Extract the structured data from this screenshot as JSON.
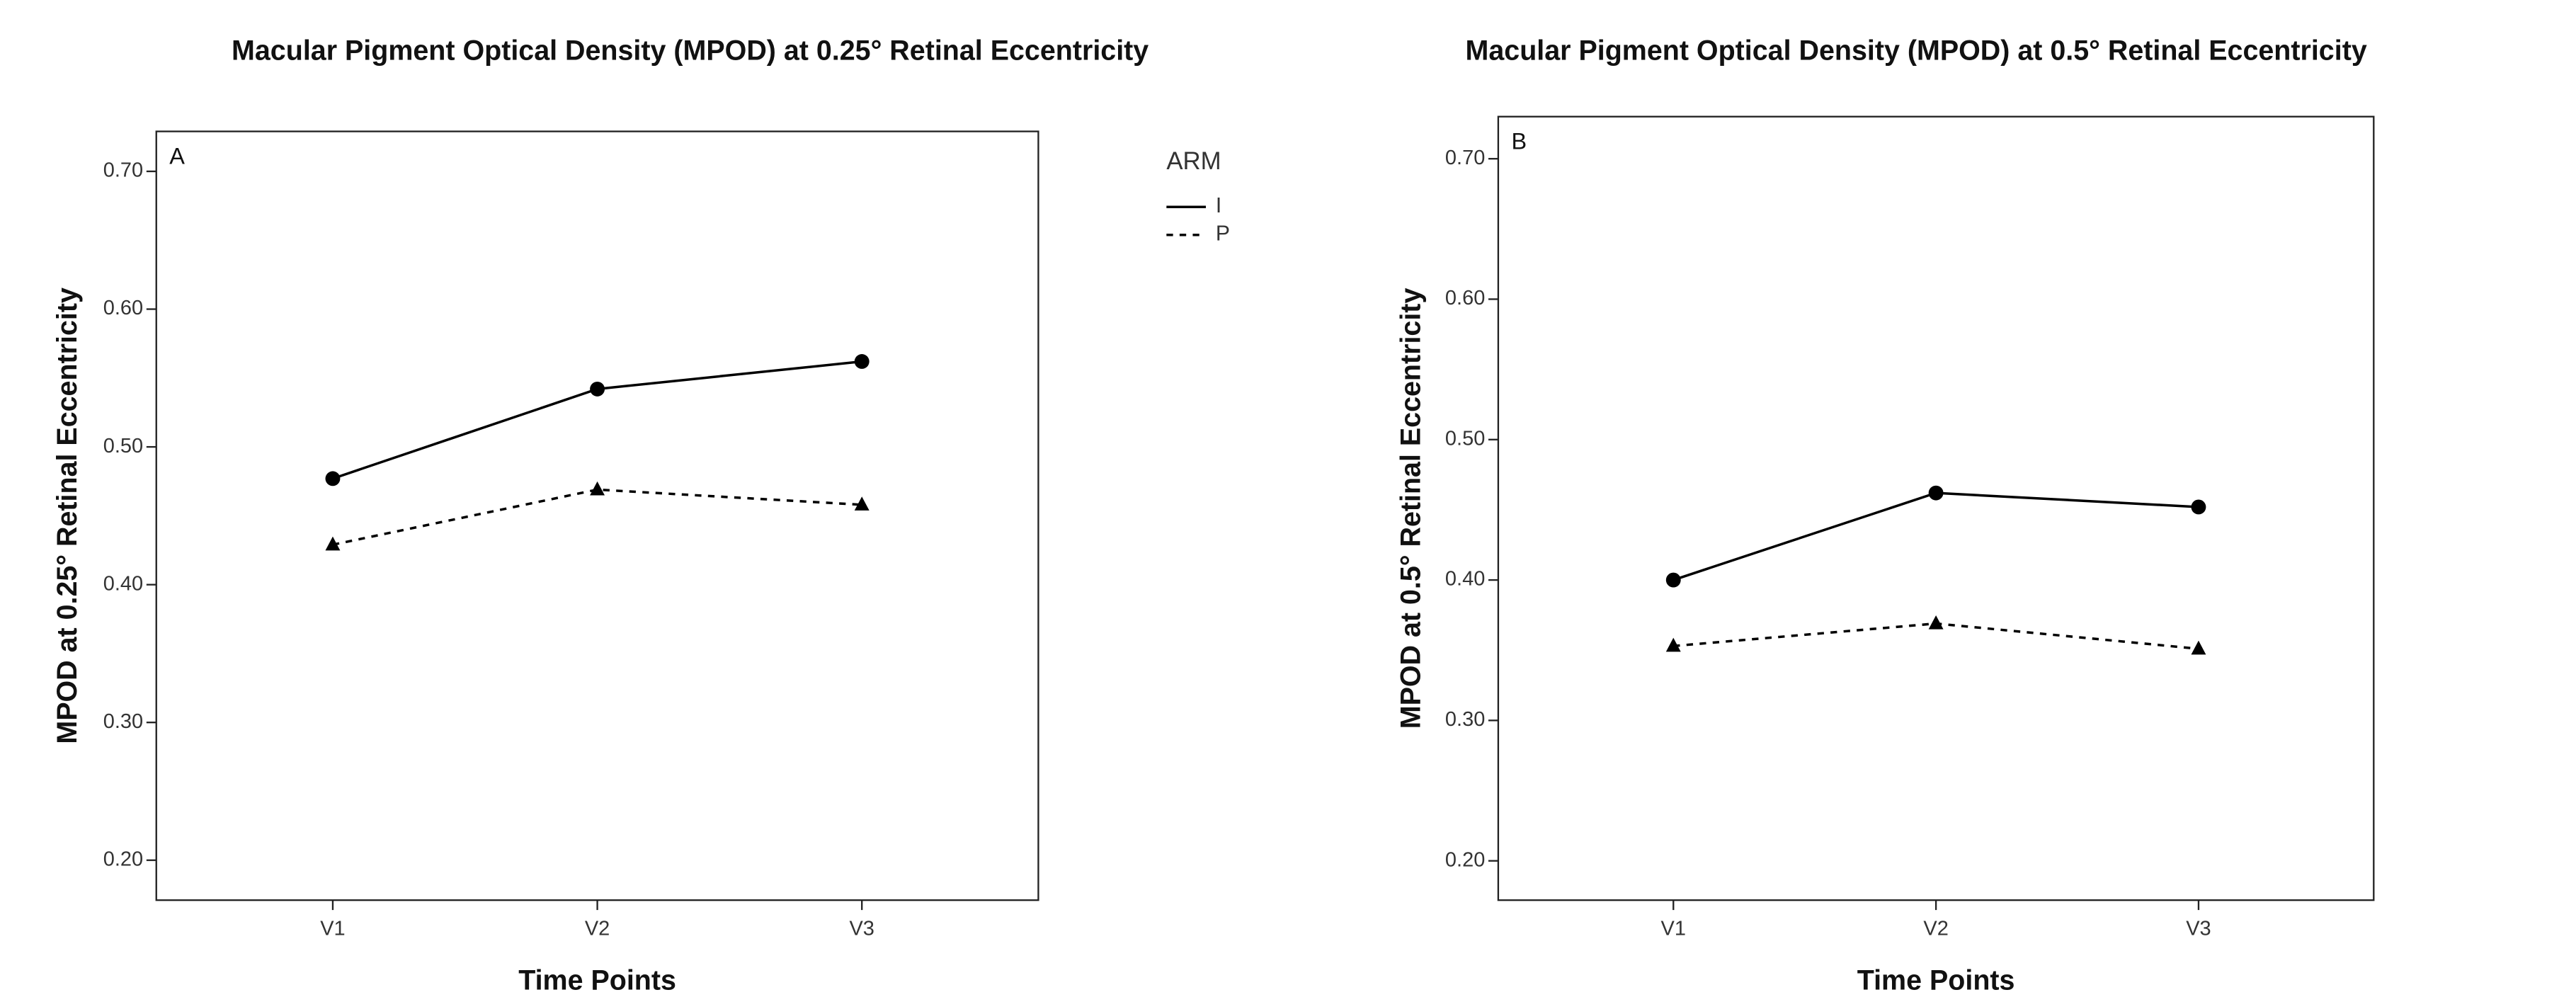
{
  "chart_data": [
    {
      "type": "line",
      "panel_label": "A",
      "title": "Macular Pigment Optical Density (MPOD) at 0.25° Retinal Eccentricity",
      "x_label": "Time Points",
      "y_label": "MPOD at 0.25° Retinal Eccentricity",
      "categories": [
        "V1",
        "V2",
        "V3"
      ],
      "series": [
        {
          "name": "I",
          "color": "#000000",
          "marker": "circle",
          "line_style": "solid",
          "values": [
            0.477,
            0.542,
            0.562
          ]
        },
        {
          "name": "P",
          "color": "#000000",
          "marker": "triangle",
          "line_style": "dashed",
          "values": [
            0.429,
            0.469,
            0.458
          ]
        }
      ],
      "ylim": [
        0.171,
        0.729
      ],
      "yticks": [
        {
          "value": 0.2,
          "label": "0.20"
        },
        {
          "value": 0.3,
          "label": "0.30"
        },
        {
          "value": 0.4,
          "label": "0.40"
        },
        {
          "value": 0.5,
          "label": "0.50"
        },
        {
          "value": 0.6,
          "label": "0.60"
        },
        {
          "value": 0.7,
          "label": "0.70"
        }
      ],
      "legend": true,
      "legend_title": "ARM"
    },
    {
      "type": "line",
      "panel_label": "B",
      "title": "Macular Pigment Optical Density (MPOD) at 0.5° Retinal Eccentricity",
      "x_label": "Time Points",
      "y_label": "MPOD at 0.5° Retinal Eccentricity",
      "categories": [
        "V1",
        "V2",
        "V3"
      ],
      "series": [
        {
          "name": "I",
          "color": "#000000",
          "marker": "circle",
          "line_style": "solid",
          "values": [
            0.4,
            0.462,
            0.452
          ]
        },
        {
          "name": "P",
          "color": "#000000",
          "marker": "triangle",
          "line_style": "dashed",
          "values": [
            0.353,
            0.369,
            0.351
          ]
        }
      ],
      "ylim": [
        0.172,
        0.73
      ],
      "yticks": [
        {
          "value": 0.2,
          "label": "0.20"
        },
        {
          "value": 0.3,
          "label": "0.30"
        },
        {
          "value": 0.4,
          "label": "0.40"
        },
        {
          "value": 0.5,
          "label": "0.50"
        },
        {
          "value": 0.6,
          "label": "0.60"
        },
        {
          "value": 0.7,
          "label": "0.70"
        }
      ],
      "legend": false
    }
  ]
}
